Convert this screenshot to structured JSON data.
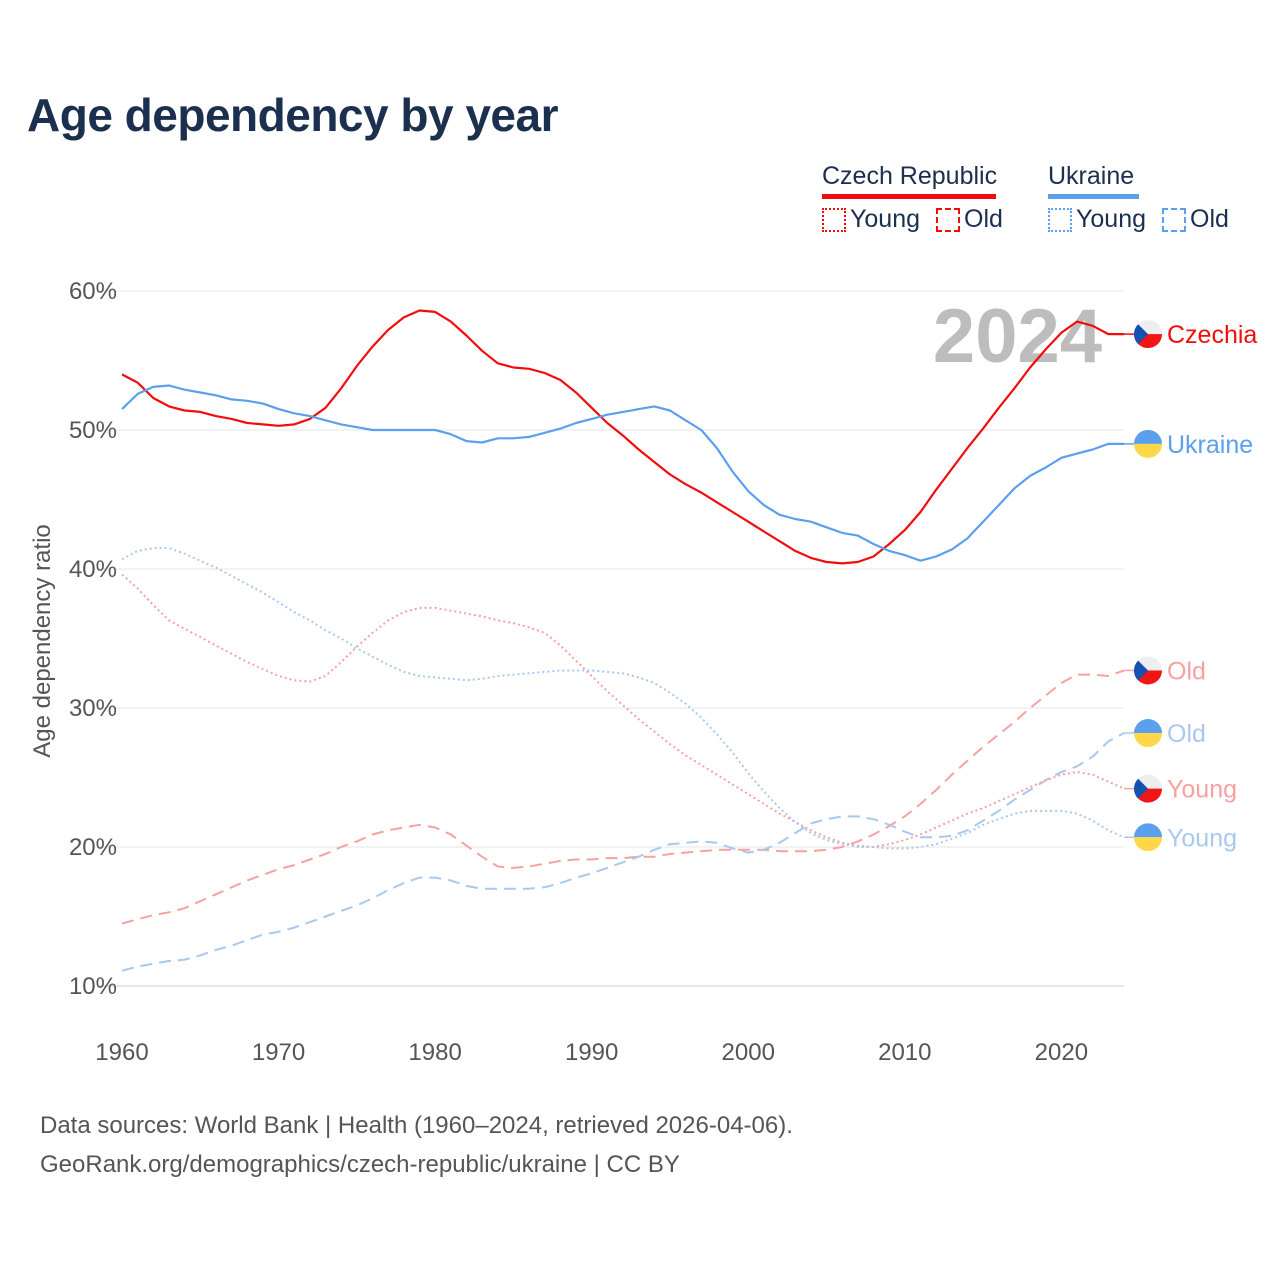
{
  "chart_data": {
    "type": "line",
    "title": "Age dependency by year",
    "xlabel": "",
    "ylabel": "Age dependency ratio",
    "xlim": [
      1960,
      2024
    ],
    "ylim": [
      10,
      60
    ],
    "grid": true,
    "legend_placement": "top-right",
    "year_watermark": "2024",
    "x_ticks": [
      "1960",
      "1970",
      "1980",
      "1990",
      "2000",
      "2010",
      "2020"
    ],
    "y_ticks": [
      "10%",
      "20%",
      "30%",
      "40%",
      "50%",
      "60%"
    ],
    "x_start": 1960,
    "legend": {
      "countries": [
        {
          "name": "Czech Republic",
          "color": "#f20d0d",
          "items": [
            "Young",
            "Old"
          ]
        },
        {
          "name": "Ukraine",
          "color": "#5aa0ec",
          "items": [
            "Young",
            "Old"
          ]
        }
      ]
    },
    "series": [
      {
        "name": "Czech Republic",
        "label": "Czechia",
        "type": "total",
        "style": "solid",
        "color": "#f20d0d",
        "flag": "cz",
        "values": [
          54.0,
          53.4,
          52.3,
          51.7,
          51.4,
          51.3,
          51.0,
          50.8,
          50.5,
          50.4,
          50.3,
          50.4,
          50.8,
          51.6,
          53.0,
          54.6,
          56.0,
          57.2,
          58.1,
          58.6,
          58.5,
          57.8,
          56.8,
          55.7,
          54.8,
          54.5,
          54.4,
          54.1,
          53.6,
          52.7,
          51.6,
          50.5,
          49.6,
          48.6,
          47.7,
          46.8,
          46.1,
          45.5,
          44.8,
          44.1,
          43.4,
          42.7,
          42.0,
          41.3,
          40.8,
          40.5,
          40.4,
          40.5,
          40.9,
          41.8,
          42.8,
          44.1,
          45.7,
          47.2,
          48.7,
          50.1,
          51.6,
          53.0,
          54.5,
          55.8,
          57.0,
          57.8,
          57.5,
          56.9,
          56.9
        ]
      },
      {
        "name": "Ukraine",
        "label": "Ukraine",
        "type": "total",
        "style": "solid",
        "color": "#5aa0ec",
        "flag": "ua",
        "values": [
          51.5,
          52.6,
          53.1,
          53.2,
          52.9,
          52.7,
          52.5,
          52.2,
          52.1,
          51.9,
          51.5,
          51.2,
          51.0,
          50.7,
          50.4,
          50.2,
          50.0,
          50.0,
          50.0,
          50.0,
          50.0,
          49.7,
          49.2,
          49.1,
          49.4,
          49.4,
          49.5,
          49.8,
          50.1,
          50.5,
          50.8,
          51.1,
          51.3,
          51.5,
          51.7,
          51.4,
          50.7,
          50.0,
          48.7,
          47.0,
          45.6,
          44.6,
          43.9,
          43.6,
          43.4,
          43.0,
          42.6,
          42.4,
          41.8,
          41.3,
          41.0,
          40.6,
          40.9,
          41.4,
          42.2,
          43.4,
          44.6,
          45.8,
          46.7,
          47.3,
          48.0,
          48.3,
          48.6,
          49.0,
          49.0
        ]
      },
      {
        "name": "Czech Republic Old",
        "label": "Old",
        "type": "old",
        "style": "dashed",
        "color": "#f7a1a1",
        "flag": "cz",
        "values": [
          14.5,
          14.8,
          15.1,
          15.3,
          15.6,
          16.1,
          16.6,
          17.1,
          17.6,
          18.0,
          18.4,
          18.7,
          19.1,
          19.5,
          20.0,
          20.4,
          20.9,
          21.2,
          21.4,
          21.6,
          21.4,
          20.9,
          20.1,
          19.3,
          18.6,
          18.5,
          18.6,
          18.8,
          19.0,
          19.1,
          19.1,
          19.2,
          19.2,
          19.3,
          19.3,
          19.5,
          19.6,
          19.7,
          19.8,
          19.8,
          19.8,
          19.8,
          19.7,
          19.7,
          19.7,
          19.8,
          20.0,
          20.4,
          20.9,
          21.5,
          22.2,
          23.1,
          24.1,
          25.2,
          26.2,
          27.2,
          28.1,
          29.0,
          30.0,
          30.9,
          31.8,
          32.4,
          32.4,
          32.3,
          32.7
        ]
      },
      {
        "name": "Ukraine Old",
        "label": "Old",
        "type": "old",
        "style": "dashed",
        "color": "#a9c8ee",
        "flag": "ua",
        "values": [
          11.1,
          11.4,
          11.6,
          11.8,
          11.9,
          12.2,
          12.6,
          12.9,
          13.3,
          13.7,
          13.9,
          14.2,
          14.6,
          15.0,
          15.4,
          15.8,
          16.3,
          16.9,
          17.4,
          17.8,
          17.8,
          17.6,
          17.2,
          17.0,
          17.0,
          17.0,
          17.0,
          17.1,
          17.4,
          17.8,
          18.1,
          18.5,
          18.9,
          19.3,
          19.8,
          20.2,
          20.3,
          20.4,
          20.3,
          19.9,
          19.6,
          19.8,
          20.3,
          21.0,
          21.7,
          22.0,
          22.2,
          22.2,
          22.0,
          21.6,
          21.1,
          20.7,
          20.7,
          20.8,
          21.2,
          21.9,
          22.6,
          23.4,
          24.1,
          24.8,
          25.4,
          25.8,
          26.5,
          27.6,
          28.2
        ]
      },
      {
        "name": "Czech Republic Young",
        "label": "Young",
        "type": "young",
        "style": "dotted",
        "color": "#f7a1a1",
        "flag": "cz",
        "values": [
          39.6,
          38.6,
          37.4,
          36.3,
          35.7,
          35.1,
          34.5,
          33.9,
          33.3,
          32.8,
          32.3,
          32.0,
          31.9,
          32.3,
          33.3,
          34.4,
          35.4,
          36.3,
          36.9,
          37.2,
          37.2,
          37.0,
          36.8,
          36.6,
          36.3,
          36.1,
          35.8,
          35.4,
          34.5,
          33.4,
          32.3,
          31.2,
          30.2,
          29.2,
          28.3,
          27.4,
          26.6,
          25.9,
          25.2,
          24.5,
          23.8,
          23.1,
          22.4,
          21.8,
          21.2,
          20.7,
          20.3,
          20.1,
          20.0,
          20.2,
          20.5,
          20.9,
          21.4,
          21.9,
          22.4,
          22.8,
          23.3,
          23.8,
          24.3,
          24.8,
          25.2,
          25.4,
          25.2,
          24.7,
          24.2
        ]
      },
      {
        "name": "Ukraine Young",
        "label": "Young",
        "type": "young",
        "style": "dotted",
        "color": "#a9c8ee",
        "flag": "ua",
        "values": [
          40.7,
          41.3,
          41.5,
          41.5,
          41.1,
          40.6,
          40.1,
          39.5,
          38.9,
          38.3,
          37.6,
          36.9,
          36.3,
          35.6,
          35.0,
          34.3,
          33.7,
          33.1,
          32.6,
          32.3,
          32.2,
          32.1,
          32.0,
          32.1,
          32.3,
          32.4,
          32.5,
          32.6,
          32.7,
          32.7,
          32.7,
          32.6,
          32.5,
          32.2,
          31.8,
          31.1,
          30.3,
          29.3,
          28.1,
          26.8,
          25.3,
          24.0,
          22.8,
          21.8,
          21.0,
          20.5,
          20.2,
          20.0,
          20.0,
          19.9,
          19.9,
          20.0,
          20.2,
          20.6,
          21.0,
          21.6,
          22.0,
          22.4,
          22.6,
          22.6,
          22.6,
          22.4,
          21.9,
          21.2,
          20.7
        ]
      }
    ]
  },
  "source": {
    "line1": "Data sources: World Bank | Health (1960–2024, retrieved 2026-04-06).",
    "line2": "GeoRank.org/demographics/czech-republic/ukraine | CC BY"
  }
}
